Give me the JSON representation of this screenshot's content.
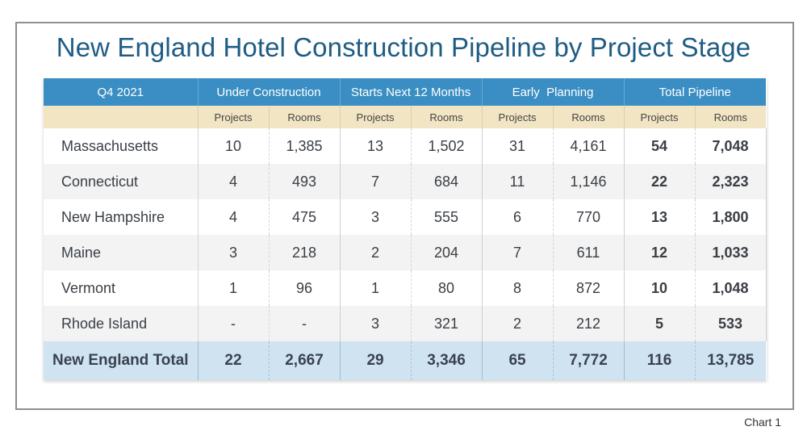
{
  "title": "New England Hotel Construction Pipeline by Project Stage",
  "caption": "Chart 1",
  "colors": {
    "header_blue": "#3a8ec3",
    "subheader_tan": "#f2e5c4",
    "total_row": "#cfe3f0",
    "title": "#1f5c84"
  },
  "chart_data": {
    "type": "table",
    "title": "New England Hotel Construction Pipeline by Project Stage",
    "period_label": "Q4 2021",
    "groups": [
      "Under Construction",
      "Starts Next 12 Months",
      "Early  Planning",
      "Total Pipeline"
    ],
    "subcolumns": [
      "Projects",
      "Rooms"
    ],
    "rows": [
      {
        "state": "Massachusetts",
        "values": [
          "10",
          "1,385",
          "13",
          "1,502",
          "31",
          "4,161",
          "54",
          "7,048"
        ]
      },
      {
        "state": "Connecticut",
        "values": [
          "4",
          "493",
          "7",
          "684",
          "11",
          "1,146",
          "22",
          "2,323"
        ]
      },
      {
        "state": "New Hampshire",
        "values": [
          "4",
          "475",
          "3",
          "555",
          "6",
          "770",
          "13",
          "1,800"
        ]
      },
      {
        "state": "Maine",
        "values": [
          "3",
          "218",
          "2",
          "204",
          "7",
          "611",
          "12",
          "1,033"
        ]
      },
      {
        "state": "Vermont",
        "values": [
          "1",
          "96",
          "1",
          "80",
          "8",
          "872",
          "10",
          "1,048"
        ]
      },
      {
        "state": "Rhode Island",
        "values": [
          "-",
          "-",
          "3",
          "321",
          "2",
          "212",
          "5",
          "533"
        ]
      }
    ],
    "total": {
      "state": "New England Total",
      "values": [
        "22",
        "2,667",
        "29",
        "3,346",
        "65",
        "7,772",
        "116",
        "13,785"
      ]
    }
  }
}
